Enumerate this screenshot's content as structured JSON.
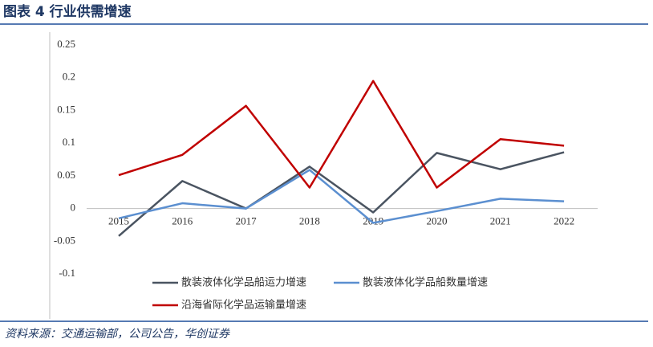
{
  "chart_data": {
    "type": "line",
    "title": "图表 4 行业供需增速",
    "source": "资料来源：交通运输部，公司公告，华创证券",
    "categories": [
      "2015",
      "2016",
      "2017",
      "2018",
      "2019",
      "2020",
      "2021",
      "2022"
    ],
    "series": [
      {
        "name": "散装液体化学品船运力增速",
        "color": "#4a5461",
        "values": [
          -0.042,
          0.042,
          0,
          0.064,
          -0.006,
          0.085,
          0.06,
          0.086
        ]
      },
      {
        "name": "散装液体化学品船数量增速",
        "color": "#5b8fd0",
        "values": [
          -0.015,
          0.008,
          0,
          0.059,
          -0.022,
          -0.004,
          0.015,
          0.011
        ]
      },
      {
        "name": "沿海省际化学品运输量增速",
        "color": "#c00000",
        "values": [
          0.051,
          0.082,
          0.157,
          0.032,
          0.195,
          0.032,
          0.106,
          0.096
        ]
      }
    ],
    "ylim": [
      -0.1,
      0.25
    ],
    "yticks": [
      -0.1,
      -0.05,
      0,
      0.05,
      0.1,
      0.15,
      0.2,
      0.25
    ],
    "legend": "bottom"
  }
}
